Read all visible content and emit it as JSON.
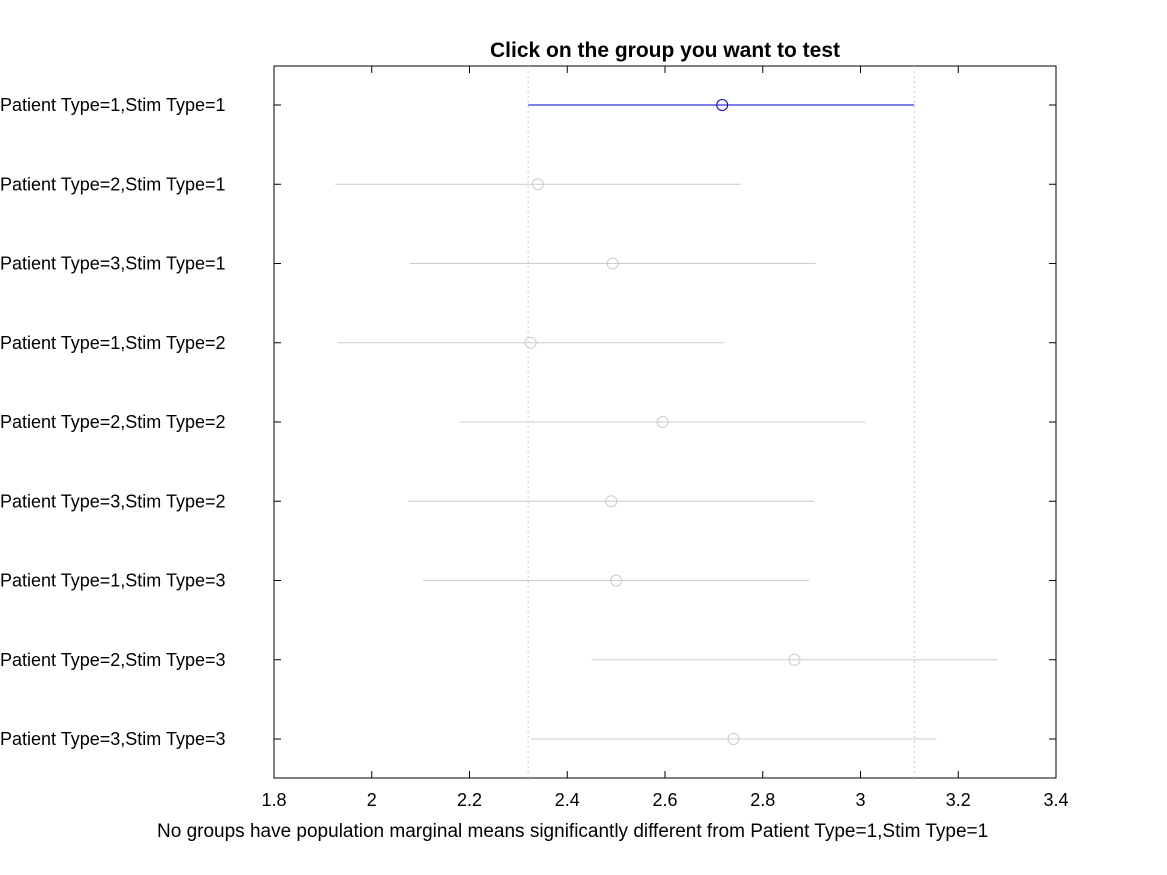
{
  "chart_data": {
    "type": "interval",
    "title": "Click on the group you want to test",
    "xlabel": "No groups have population marginal means significantly different from Patient Type=1,Stim Type=1",
    "ylabel": "",
    "xlim": [
      1.8,
      3.4
    ],
    "xticks": [
      "1.8",
      "2",
      "2.2",
      "2.4",
      "2.6",
      "2.8",
      "3",
      "3.2",
      "3.4"
    ],
    "grid": false,
    "reference_lines": [
      2.32,
      3.11
    ],
    "groups": [
      {
        "label": "Patient Type=1,Stim Type=1",
        "mean": 2.717,
        "low": 2.32,
        "high": 3.11,
        "selected": true
      },
      {
        "label": "Patient Type=2,Stim Type=1",
        "mean": 2.34,
        "low": 1.925,
        "high": 2.755,
        "selected": false
      },
      {
        "label": "Patient Type=3,Stim Type=1",
        "mean": 2.493,
        "low": 2.078,
        "high": 2.908,
        "selected": false
      },
      {
        "label": "Patient Type=1,Stim Type=2",
        "mean": 2.325,
        "low": 1.93,
        "high": 2.72,
        "selected": false
      },
      {
        "label": "Patient Type=2,Stim Type=2",
        "mean": 2.595,
        "low": 2.18,
        "high": 3.01,
        "selected": false
      },
      {
        "label": "Patient Type=3,Stim Type=2",
        "mean": 2.49,
        "low": 2.075,
        "high": 2.905,
        "selected": false
      },
      {
        "label": "Patient Type=1,Stim Type=3",
        "mean": 2.5,
        "low": 2.105,
        "high": 2.895,
        "selected": false
      },
      {
        "label": "Patient Type=2,Stim Type=3",
        "mean": 2.865,
        "low": 2.45,
        "high": 3.28,
        "selected": false
      },
      {
        "label": "Patient Type=3,Stim Type=3",
        "mean": 2.74,
        "low": 2.325,
        "high": 3.155,
        "selected": false
      }
    ],
    "colors": {
      "selected": "#0000cc",
      "other": "#cccccc",
      "reference": "#c8c8c8",
      "axes": "#000000"
    }
  }
}
